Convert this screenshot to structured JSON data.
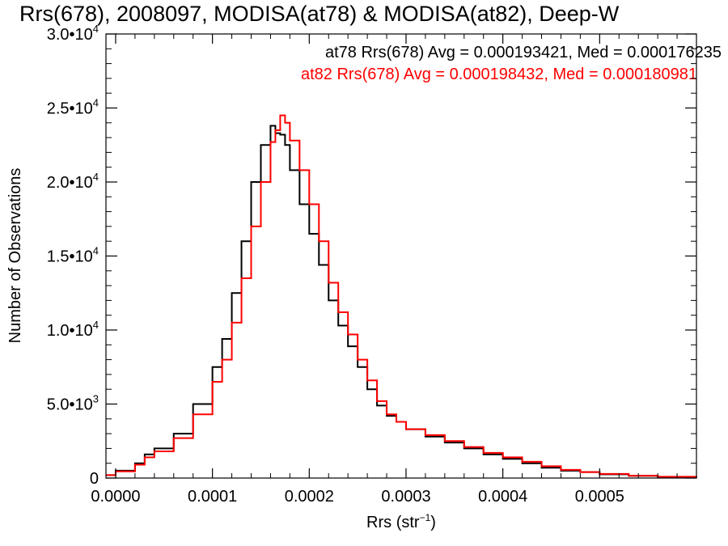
{
  "chart_data": {
    "type": "line",
    "title": "Rrs(678), 2008097, MODISA(at78) & MODISA(at82), Deep-W",
    "xlabel": "Rrs (str",
    "xlabel_sup": "−1",
    "xlabel_close": ")",
    "ylabel": "Number of Observations",
    "xlim": [
      -1e-05,
      0.0006
    ],
    "ylim": [
      0,
      30000
    ],
    "xticks": [
      0.0,
      0.0001,
      0.0002,
      0.0003,
      0.0004,
      0.0005
    ],
    "xtick_labels": [
      "0.0000",
      "0.0001",
      "0.0002",
      "0.0003",
      "0.0004",
      "0.0005"
    ],
    "yticks": [
      0,
      5000,
      10000,
      15000,
      20000,
      25000,
      30000
    ],
    "ytick_labels": [
      {
        "base": "0",
        "exp": ""
      },
      {
        "base": "5.0•10",
        "exp": "3"
      },
      {
        "base": "1.0•10",
        "exp": "4"
      },
      {
        "base": "1.5•10",
        "exp": "4"
      },
      {
        "base": "2.0•10",
        "exp": "4"
      },
      {
        "base": "2.5•10",
        "exp": "4"
      },
      {
        "base": "3.0•10",
        "exp": "4"
      }
    ],
    "annotations": [
      {
        "text": "at78 Rrs(678) Avg = 0.000193421, Med = 0.000176235",
        "color": "#000000"
      },
      {
        "text": "at82 Rrs(678) Avg = 0.000198432, Med = 0.000180981",
        "color": "#ff0000"
      }
    ],
    "grid": false,
    "series": [
      {
        "color": "#000000",
        "points": [
          [
            -1e-05,
            200
          ],
          [
            0.0,
            500
          ],
          [
            2e-05,
            1000
          ],
          [
            3e-05,
            1600
          ],
          [
            4e-05,
            2000
          ],
          [
            6e-05,
            3000
          ],
          [
            8e-05,
            5000
          ],
          [
            0.0001,
            7500
          ],
          [
            0.00011,
            9400
          ],
          [
            0.00012,
            12500
          ],
          [
            0.00013,
            16000
          ],
          [
            0.00014,
            20000
          ],
          [
            0.00015,
            22500
          ],
          [
            0.00016,
            23800
          ],
          [
            0.000165,
            23300
          ],
          [
            0.00017,
            23200
          ],
          [
            0.000175,
            22500
          ],
          [
            0.00018,
            20800
          ],
          [
            0.00019,
            18500
          ],
          [
            0.0002,
            16500
          ],
          [
            0.00021,
            14400
          ],
          [
            0.00022,
            12000
          ],
          [
            0.00023,
            10300
          ],
          [
            0.00024,
            8900
          ],
          [
            0.00025,
            7500
          ],
          [
            0.00026,
            6000
          ],
          [
            0.00027,
            4900
          ],
          [
            0.00028,
            4200
          ],
          [
            0.00029,
            3800
          ],
          [
            0.0003,
            3300
          ],
          [
            0.00032,
            2800
          ],
          [
            0.00034,
            2400
          ],
          [
            0.00036,
            2000
          ],
          [
            0.00038,
            1600
          ],
          [
            0.0004,
            1300
          ],
          [
            0.00042,
            1000
          ],
          [
            0.00044,
            700
          ],
          [
            0.00046,
            500
          ],
          [
            0.00048,
            400
          ],
          [
            0.0005,
            250
          ],
          [
            0.00053,
            150
          ],
          [
            0.00056,
            80
          ],
          [
            0.0006,
            40
          ]
        ]
      },
      {
        "color": "#ff0000",
        "points": [
          [
            -1e-05,
            200
          ],
          [
            0.0,
            450
          ],
          [
            2e-05,
            900
          ],
          [
            3e-05,
            1400
          ],
          [
            4e-05,
            1800
          ],
          [
            6e-05,
            2700
          ],
          [
            8e-05,
            4300
          ],
          [
            0.0001,
            6500
          ],
          [
            0.00011,
            8000
          ],
          [
            0.00012,
            10500
          ],
          [
            0.00013,
            13500
          ],
          [
            0.00014,
            17000
          ],
          [
            0.00015,
            20000
          ],
          [
            0.00016,
            22700
          ],
          [
            0.000165,
            23500
          ],
          [
            0.00017,
            24500
          ],
          [
            0.000175,
            24000
          ],
          [
            0.00018,
            22800
          ],
          [
            0.00019,
            20800
          ],
          [
            0.0002,
            18500
          ],
          [
            0.00021,
            16000
          ],
          [
            0.00022,
            13200
          ],
          [
            0.00023,
            11200
          ],
          [
            0.00024,
            9700
          ],
          [
            0.00025,
            8000
          ],
          [
            0.00026,
            6600
          ],
          [
            0.00027,
            5200
          ],
          [
            0.00028,
            4300
          ],
          [
            0.00029,
            3800
          ],
          [
            0.0003,
            3300
          ],
          [
            0.00032,
            2900
          ],
          [
            0.00034,
            2500
          ],
          [
            0.00036,
            2100
          ],
          [
            0.00038,
            1700
          ],
          [
            0.0004,
            1400
          ],
          [
            0.00042,
            1100
          ],
          [
            0.00044,
            800
          ],
          [
            0.00046,
            550
          ],
          [
            0.00048,
            400
          ],
          [
            0.0005,
            280
          ],
          [
            0.00053,
            160
          ],
          [
            0.00056,
            90
          ],
          [
            0.0006,
            40
          ]
        ]
      }
    ]
  }
}
